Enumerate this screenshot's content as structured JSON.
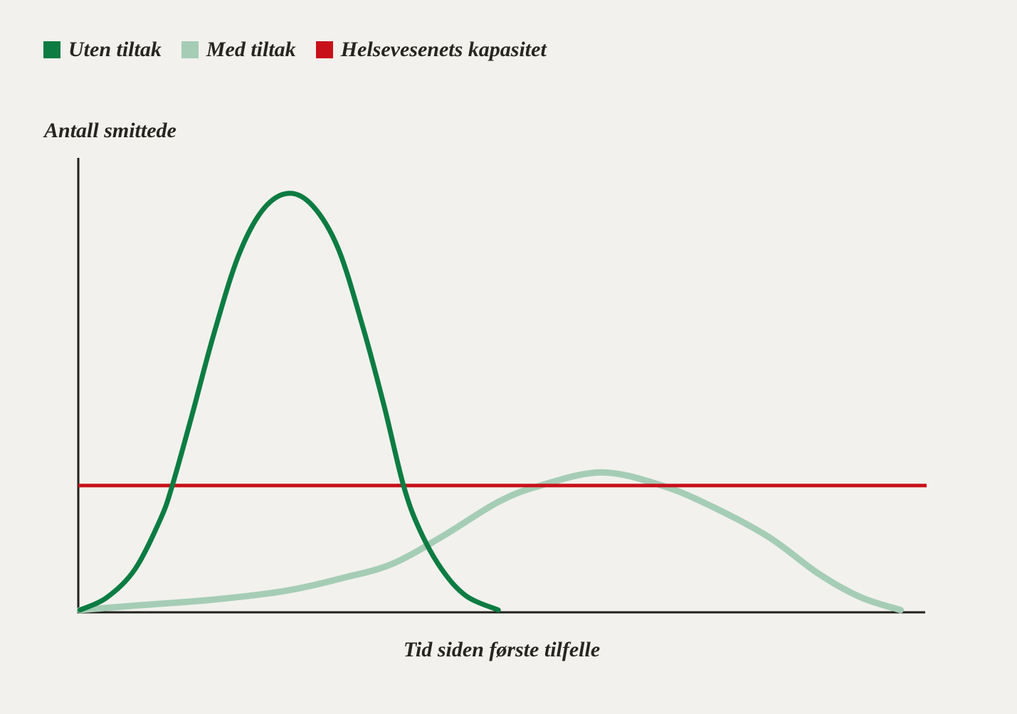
{
  "colors": {
    "background": "#f2f1ed",
    "text": "#26251f",
    "axis": "#21201c",
    "uten_tiltak": "#0c7c42",
    "med_tiltak": "#a5cdb5",
    "kapasitet": "#c8101a"
  },
  "legend": {
    "items": [
      {
        "label": "Uten tiltak",
        "color": "#0c7c42"
      },
      {
        "label": "Med tiltak",
        "color": "#a5cdb5"
      },
      {
        "label": "Helsevesenets kapasitet",
        "color": "#c8101a"
      }
    ]
  },
  "chart_data": {
    "type": "line",
    "title": "",
    "ylabel": "Antall smittede",
    "xlabel": "Tid siden første tilfelle",
    "xlim": [
      0,
      100
    ],
    "ylim": [
      0,
      100
    ],
    "grid": false,
    "tick_labels": "none",
    "legend_position": "top-left",
    "capacity_line": {
      "label": "Helsevesenets kapasitet",
      "value": 27.9,
      "color": "#c8101a"
    },
    "series": [
      {
        "name": "Uten tiltak",
        "color": "#0c7c42",
        "peak": {
          "x": 24.8,
          "y": 92.2
        },
        "points": [
          [
            0.2,
            0.5
          ],
          [
            3.4,
            3.3
          ],
          [
            6.7,
            9.5
          ],
          [
            9.7,
            20.5
          ],
          [
            11.1,
            27.9
          ],
          [
            13.4,
            43.2
          ],
          [
            16.0,
            61.2
          ],
          [
            18.9,
            78.4
          ],
          [
            21.8,
            88.6
          ],
          [
            24.8,
            92.2
          ],
          [
            27.7,
            89.4
          ],
          [
            30.7,
            80.0
          ],
          [
            33.6,
            62.8
          ],
          [
            36.1,
            45.5
          ],
          [
            38.4,
            27.9
          ],
          [
            40.3,
            18.2
          ],
          [
            42.9,
            9.5
          ],
          [
            45.8,
            3.6
          ],
          [
            49.6,
            0.5
          ]
        ]
      },
      {
        "name": "Med tiltak",
        "color": "#a5cdb5",
        "peak": {
          "x": 61.8,
          "y": 30.8
        },
        "points": [
          [
            0.2,
            0.5
          ],
          [
            7.6,
            1.6
          ],
          [
            16.0,
            2.8
          ],
          [
            24.4,
            4.7
          ],
          [
            31.1,
            7.5
          ],
          [
            37.0,
            10.6
          ],
          [
            42.9,
            16.6
          ],
          [
            49.6,
            24.3
          ],
          [
            54.6,
            27.9
          ],
          [
            61.8,
            30.8
          ],
          [
            68.9,
            27.9
          ],
          [
            74.8,
            23.3
          ],
          [
            81.5,
            16.6
          ],
          [
            87.4,
            8.5
          ],
          [
            92.4,
            3.3
          ],
          [
            97.1,
            0.5
          ]
        ]
      }
    ]
  }
}
